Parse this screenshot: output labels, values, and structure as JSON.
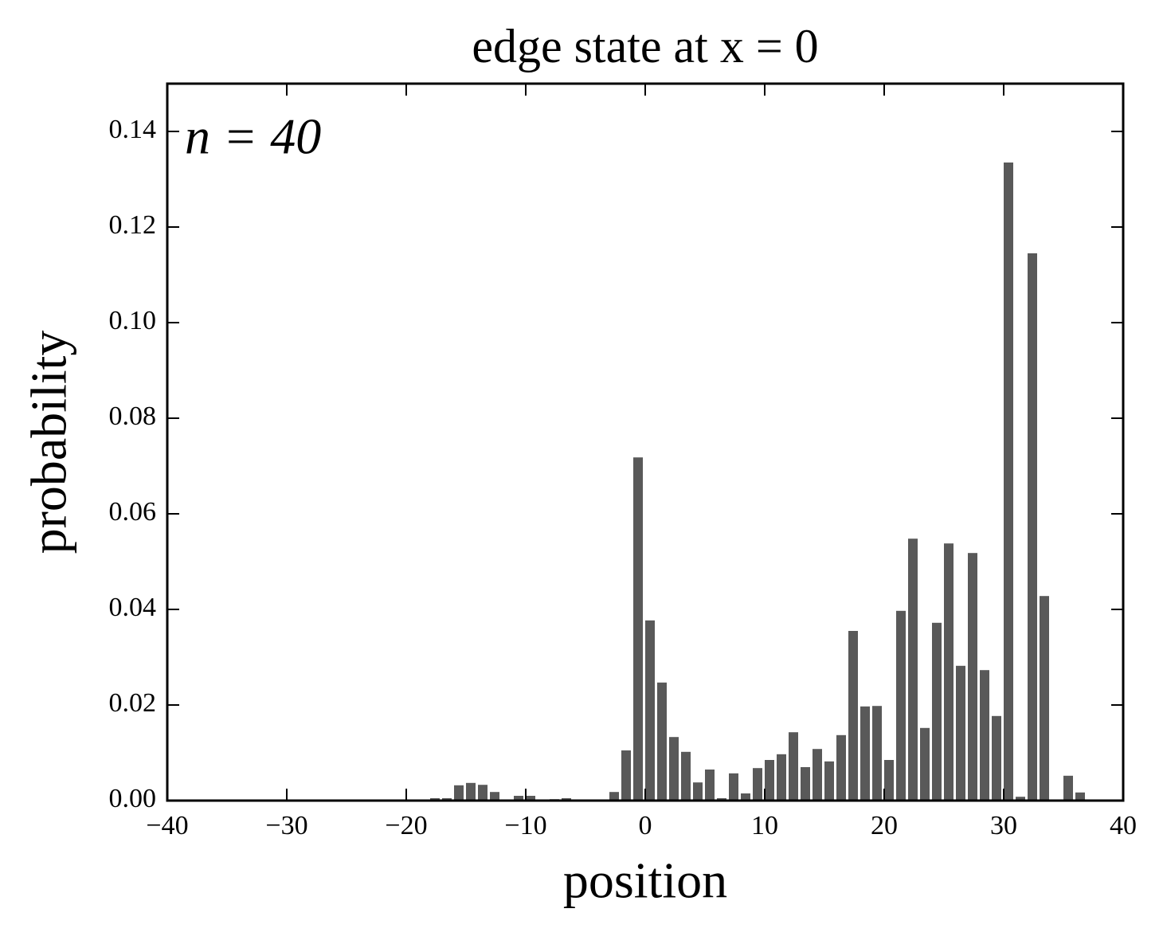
{
  "chart_data": {
    "type": "bar",
    "title": "edge state at x = 0",
    "xlabel": "position",
    "ylabel": "probability",
    "annotation": "n = 40",
    "color": "#595959",
    "x": [
      -18,
      -17,
      -16,
      -15,
      -14,
      -13,
      -11,
      -10,
      -8,
      -7,
      -3,
      -2,
      -1,
      0,
      1,
      2,
      3,
      4,
      5,
      6,
      7,
      8,
      9,
      10,
      11,
      12,
      13,
      14,
      15,
      16,
      17,
      18,
      19,
      20,
      21,
      22,
      23,
      24,
      25,
      26,
      27,
      28,
      29,
      30,
      31,
      32,
      33,
      35,
      36
    ],
    "values": [
      0.0005,
      0.0005,
      0.0032,
      0.0037,
      0.0033,
      0.0018,
      0.001,
      0.001,
      0.0003,
      0.0005,
      0.0018,
      0.0105,
      0.0718,
      0.0377,
      0.0247,
      0.0133,
      0.0102,
      0.0038,
      0.0065,
      0.0005,
      0.0057,
      0.0015,
      0.0068,
      0.0085,
      0.0097,
      0.0143,
      0.007,
      0.0108,
      0.0082,
      0.0137,
      0.0355,
      0.0197,
      0.0198,
      0.0085,
      0.0397,
      0.0548,
      0.0152,
      0.0372,
      0.0538,
      0.0282,
      0.0518,
      0.0273,
      0.0177,
      0.1335,
      0.0008,
      0.1145,
      0.0428,
      0.0052,
      0.0017
    ],
    "xlim": [
      -40,
      40
    ],
    "xticks": [
      {
        "value": -40,
        "label": "−40"
      },
      {
        "value": -30,
        "label": "−30"
      },
      {
        "value": -20,
        "label": "−20"
      },
      {
        "value": -10,
        "label": "−10"
      },
      0,
      10,
      20,
      30,
      40
    ],
    "ylim": [
      0,
      0.15
    ],
    "yticks": [
      {
        "value": 0,
        "label": "0.00"
      },
      0.02,
      0.04,
      0.06,
      0.08,
      {
        "value": 0.1,
        "label": "0.10"
      },
      0.12,
      0.14
    ],
    "grid": false
  }
}
